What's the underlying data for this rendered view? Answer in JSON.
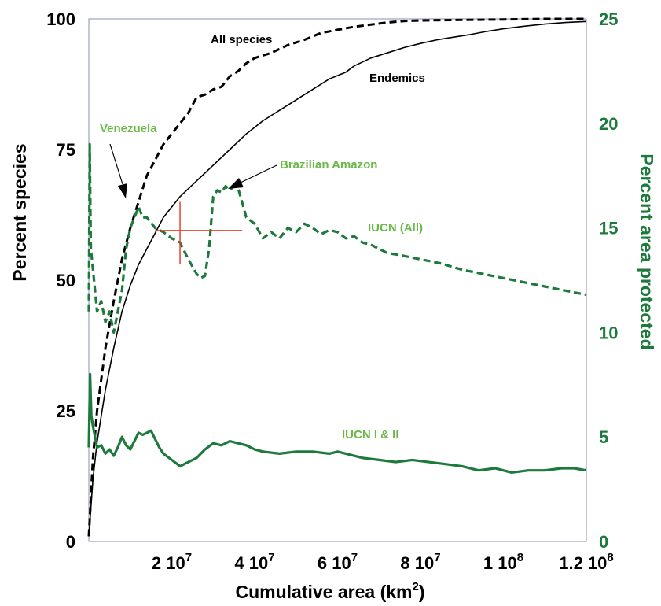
{
  "chart_data": {
    "type": "line",
    "xlabel": "Cumulative area (km",
    "xlabel_sup": "2",
    "xlabel_tail": ")",
    "ylabel_left": "Percent species",
    "ylabel_right": "Percent area protected",
    "xlim": [
      0,
      120000000
    ],
    "ylim_left": [
      0,
      100
    ],
    "ylim_right": [
      0,
      25
    ],
    "x_ticks": [
      {
        "value": 20000000,
        "label": "2 10",
        "exp": "7"
      },
      {
        "value": 40000000,
        "label": "4 10",
        "exp": "7"
      },
      {
        "value": 60000000,
        "label": "6 10",
        "exp": "7"
      },
      {
        "value": 80000000,
        "label": "8 10",
        "exp": "7"
      },
      {
        "value": 100000000,
        "label": "1 10",
        "exp": "8"
      },
      {
        "value": 120000000,
        "label": "1.2 10",
        "exp": "8"
      }
    ],
    "left_ticks": [
      {
        "value": 0,
        "label": "0"
      },
      {
        "value": 25,
        "label": "25"
      },
      {
        "value": 50,
        "label": "50"
      },
      {
        "value": 75,
        "label": "75"
      },
      {
        "value": 100,
        "label": "100"
      }
    ],
    "right_ticks": [
      {
        "value": 0,
        "label": "0"
      },
      {
        "value": 5,
        "label": "5"
      },
      {
        "value": 10,
        "label": "10"
      },
      {
        "value": 15,
        "label": "15"
      },
      {
        "value": 20,
        "label": "20"
      },
      {
        "value": 25,
        "label": "25"
      }
    ],
    "series": [
      {
        "name": "All species",
        "axis": "left",
        "style": "dashed",
        "color": "#000000",
        "x": [
          0,
          1000000,
          2000000,
          4000000,
          6000000,
          8000000,
          10000000,
          12000000,
          14000000,
          16000000,
          18000000,
          20000000,
          22000000,
          24000000,
          26000000,
          28000000,
          30000000,
          32000000,
          34000000,
          36000000,
          38000000,
          40000000,
          44000000,
          48000000,
          52000000,
          56000000,
          60000000,
          64000000,
          68000000,
          72000000,
          76000000,
          80000000,
          90000000,
          100000000,
          110000000,
          120000000
        ],
        "values": [
          1,
          16,
          25,
          37,
          46,
          54,
          60,
          65,
          70,
          73,
          76,
          78,
          80,
          82,
          85,
          85.5,
          86.5,
          87,
          89,
          90,
          91.5,
          92.5,
          93.5,
          95,
          96,
          97.3,
          97.9,
          98.5,
          98.9,
          99.3,
          99.6,
          99.7,
          99.8,
          99.9,
          100,
          100
        ]
      },
      {
        "name": "Endemics",
        "axis": "left",
        "style": "solid",
        "color": "#000000",
        "x": [
          0,
          1000000,
          2000000,
          4000000,
          6000000,
          8000000,
          10000000,
          12000000,
          14000000,
          16000000,
          18000000,
          20000000,
          22000000,
          24000000,
          26000000,
          28000000,
          30000000,
          34000000,
          38000000,
          42000000,
          46000000,
          50000000,
          54000000,
          58000000,
          62000000,
          64000000,
          68000000,
          72000000,
          76000000,
          80000000,
          84000000,
          88000000,
          92000000,
          96000000,
          100000000,
          105000000,
          110000000,
          115000000,
          120000000
        ],
        "values": [
          1,
          12,
          19,
          29,
          37,
          44,
          49,
          53,
          56,
          59,
          62,
          64,
          66,
          67.5,
          69,
          70.5,
          72,
          75,
          78,
          80.5,
          82.5,
          84.5,
          86.5,
          88.5,
          89.8,
          91,
          92.5,
          93.5,
          94.5,
          95.3,
          96,
          96.5,
          97,
          97.6,
          98.1,
          98.6,
          99,
          99.3,
          99.5
        ]
      },
      {
        "name": "IUCN (All)",
        "axis": "right",
        "style": "dashed",
        "color": "#1d7a3c",
        "x": [
          0,
          200000,
          500000,
          1000000,
          2000000,
          3000000,
          4000000,
          5000000,
          6000000,
          7000000,
          8000000,
          9000000,
          10000000,
          11000000,
          12000000,
          13000000,
          14000000,
          16000000,
          18000000,
          20000000,
          22000000,
          24000000,
          26000000,
          27000000,
          28000000,
          29000000,
          30000000,
          31000000,
          32000000,
          33000000,
          34000000,
          35000000,
          36000000,
          37000000,
          38000000,
          40000000,
          42000000,
          44000000,
          46000000,
          48000000,
          50000000,
          52000000,
          54000000,
          56000000,
          58000000,
          60000000,
          62000000,
          64000000,
          66000000,
          68000000,
          70000000,
          72000000,
          75000000,
          80000000,
          85000000,
          90000000,
          95000000,
          100000000,
          105000000,
          110000000,
          115000000,
          120000000
        ],
        "values": [
          11,
          19,
          14,
          13,
          11,
          11.5,
          10.5,
          11,
          10,
          11,
          12,
          14,
          15,
          15.5,
          16,
          15.5,
          15.5,
          15,
          14.8,
          14.5,
          14.3,
          13.5,
          12.8,
          12.6,
          12.7,
          14,
          16.5,
          16.8,
          16.7,
          17,
          16.8,
          17,
          16.9,
          16.2,
          15.5,
          15.2,
          14.5,
          14.8,
          14.5,
          15,
          14.8,
          15.2,
          15,
          14.7,
          14.9,
          14.8,
          14.5,
          14.6,
          14.3,
          14.2,
          14,
          13.8,
          13.7,
          13.5,
          13.3,
          13,
          12.8,
          12.6,
          12.4,
          12.2,
          12,
          11.8
        ]
      },
      {
        "name": "IUCN I & II",
        "axis": "right",
        "style": "solid",
        "color": "#1d7a3c",
        "x": [
          0,
          300000,
          600000,
          1000000,
          2000000,
          3000000,
          4000000,
          5000000,
          6000000,
          7000000,
          8000000,
          9000000,
          10000000,
          11000000,
          12000000,
          13000000,
          14000000,
          15000000,
          16000000,
          17000000,
          18000000,
          20000000,
          22000000,
          24000000,
          26000000,
          28000000,
          30000000,
          32000000,
          34000000,
          36000000,
          38000000,
          40000000,
          42000000,
          46000000,
          50000000,
          54000000,
          58000000,
          60000000,
          62000000,
          66000000,
          70000000,
          74000000,
          78000000,
          82000000,
          86000000,
          90000000,
          94000000,
          98000000,
          102000000,
          106000000,
          110000000,
          114000000,
          117000000,
          120000000
        ],
        "values": [
          4.5,
          8,
          6,
          5.5,
          4.5,
          4.6,
          4.2,
          4.4,
          4.1,
          4.5,
          5,
          4.6,
          4.4,
          4.8,
          5.2,
          5.1,
          5.2,
          5.3,
          4.9,
          4.5,
          4.2,
          3.9,
          3.6,
          3.8,
          4,
          4.4,
          4.7,
          4.6,
          4.8,
          4.7,
          4.6,
          4.4,
          4.3,
          4.2,
          4.3,
          4.3,
          4.2,
          4.3,
          4.2,
          4,
          3.9,
          3.8,
          3.9,
          3.8,
          3.7,
          3.6,
          3.4,
          3.5,
          3.3,
          3.4,
          3.4,
          3.5,
          3.5,
          3.4
        ]
      }
    ],
    "annotations": [
      {
        "text": "All species",
        "color": "#000000"
      },
      {
        "text": "Endemics",
        "color": "#000000"
      },
      {
        "text": "Venezuela",
        "color": "#6ab847"
      },
      {
        "text": "Brazilian Amazon",
        "color": "#6ab847"
      },
      {
        "text": "IUCN (All)",
        "color": "#6ab847"
      },
      {
        "text": "IUCN I & II",
        "color": "#6ab847"
      }
    ],
    "marker": {
      "type": "crosshair",
      "color": "#e8412c",
      "x": 22000000,
      "y_left": 59.5,
      "x_range": [
        16000000,
        37000000
      ],
      "y_range": [
        53,
        65
      ]
    },
    "colors": {
      "left_axis": "#000000",
      "right_axis": "#1d7a3c",
      "frame": "#8a8fb8",
      "venezuela_label": "#6ab847"
    }
  }
}
